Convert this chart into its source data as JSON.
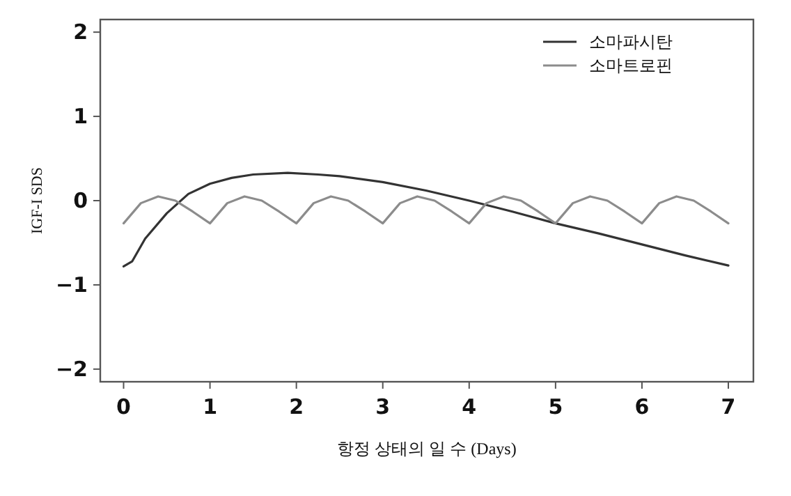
{
  "chart_data": {
    "type": "line",
    "xlabel": "항정 상태의 일 수 (Days)",
    "ylabel": "IGF-I SDS",
    "xlim": [
      -0.27,
      7.29
    ],
    "ylim": [
      -2.15,
      2.15
    ],
    "xticks": [
      0,
      1,
      2,
      3,
      4,
      5,
      6,
      7
    ],
    "yticks": [
      {
        "value": -2,
        "label": "−2"
      },
      {
        "value": -1,
        "label": "−1"
      },
      0,
      1,
      2
    ],
    "grid": false,
    "legend": "top right",
    "line_style": "solid",
    "marker": "none",
    "series": [
      {
        "name": "소마파시탄",
        "color": "#333333",
        "x": [
          0,
          0.1,
          0.25,
          0.5,
          0.75,
          1,
          1.25,
          1.5,
          1.9,
          2.25,
          2.5,
          3,
          3.5,
          4,
          4.5,
          5,
          5.5,
          6,
          6.5,
          7
        ],
        "values": [
          -0.78,
          -0.72,
          -0.45,
          -0.15,
          0.08,
          0.2,
          0.27,
          0.31,
          0.33,
          0.31,
          0.29,
          0.22,
          0.12,
          0.0,
          -0.13,
          -0.27,
          -0.39,
          -0.52,
          -0.65,
          -0.77
        ]
      },
      {
        "name": "소마트로핀",
        "color": "#8c8c8c",
        "x": [
          0,
          0.1,
          0.2,
          0.4,
          0.6,
          0.8,
          1,
          1.1,
          1.2,
          1.4,
          1.6,
          1.8,
          2,
          2.1,
          2.2,
          2.4,
          2.6,
          2.8,
          3,
          3.1,
          3.2,
          3.4,
          3.6,
          3.8,
          4,
          4.1,
          4.2,
          4.4,
          4.6,
          4.8,
          5,
          5.1,
          5.2,
          5.4,
          5.6,
          5.8,
          6,
          6.1,
          6.2,
          6.4,
          6.6,
          6.8,
          7
        ],
        "values": [
          -0.27,
          -0.15,
          -0.03,
          0.05,
          0.0,
          -0.13,
          -0.27,
          -0.15,
          -0.03,
          0.05,
          0.0,
          -0.13,
          -0.27,
          -0.15,
          -0.03,
          0.05,
          0.0,
          -0.13,
          -0.27,
          -0.15,
          -0.03,
          0.05,
          0.0,
          -0.13,
          -0.27,
          -0.15,
          -0.03,
          0.05,
          0.0,
          -0.13,
          -0.27,
          -0.15,
          -0.03,
          0.05,
          0.0,
          -0.13,
          -0.27,
          -0.15,
          -0.03,
          0.05,
          0.0,
          -0.13,
          -0.27
        ]
      }
    ]
  }
}
